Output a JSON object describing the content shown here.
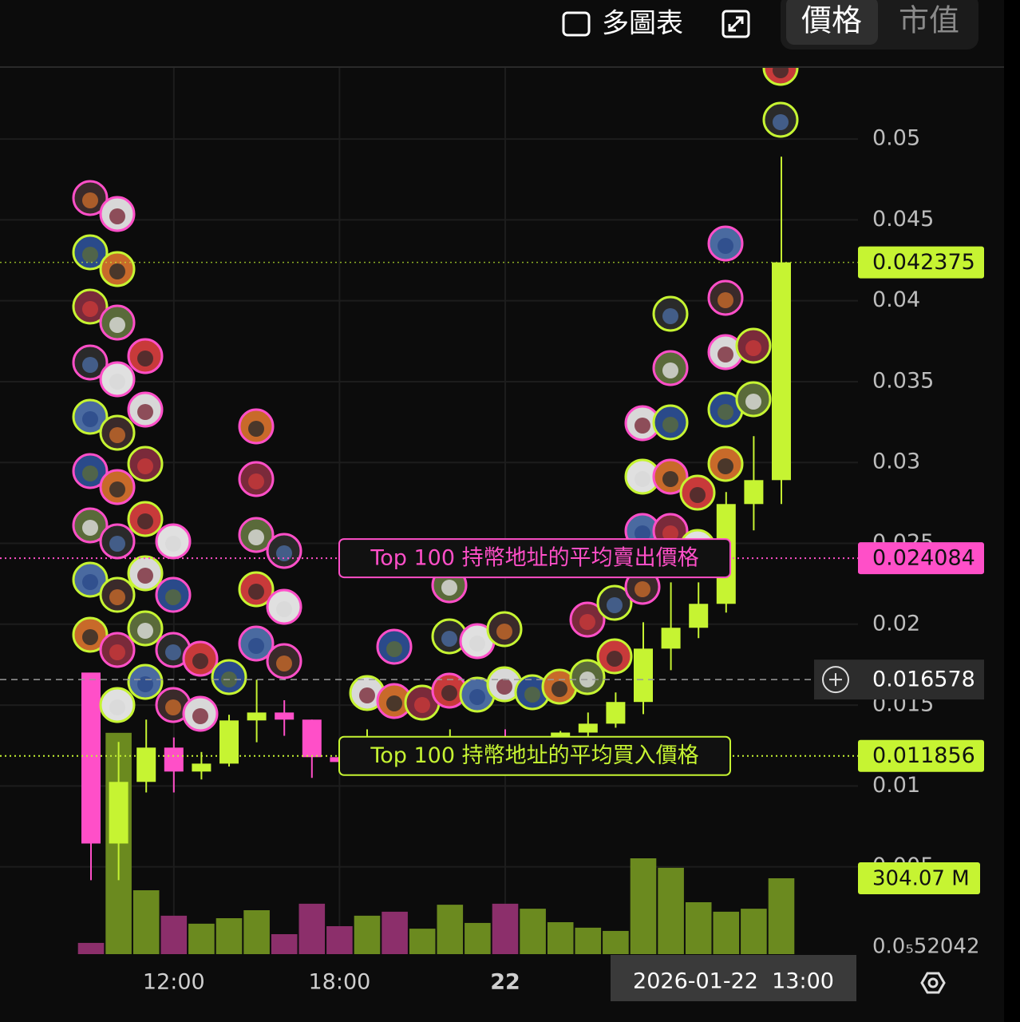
{
  "toolbar": {
    "multi_chart": "多圖表",
    "tabs": [
      "價格",
      "市值"
    ],
    "active_tab": 0
  },
  "chart_data": {
    "type": "candlestick",
    "categories": [
      null,
      null,
      null,
      "12:00",
      null,
      null,
      null,
      null,
      null,
      "18:00",
      null,
      null,
      null,
      null,
      null,
      "22",
      null,
      null,
      null,
      null,
      null,
      null,
      null,
      null,
      null,
      null
    ],
    "open": [
      0.01701,
      0.00644,
      0.01025,
      0.01237,
      0.01089,
      0.01138,
      0.01405,
      0.01454,
      0.0141,
      0.01178,
      0.01148,
      0.0118,
      0.0116,
      0.0119,
      0.0121,
      0.0122,
      0.012,
      0.0124,
      0.0133,
      0.01385,
      0.01519,
      0.01849,
      0.01978,
      0.02126,
      0.02743,
      0.02891
    ],
    "high": [
      0.017,
      0.01272,
      0.0141,
      0.013,
      0.0121,
      0.0144,
      0.01657,
      0.0153,
      0.0141,
      0.0118,
      0.0135,
      0.0128,
      0.0125,
      0.0135,
      0.0128,
      0.0135,
      0.0128,
      0.0134,
      0.01454,
      0.01578,
      0.02012,
      0.02259,
      0.02259,
      0.02817,
      0.03163,
      0.04891
    ],
    "low": [
      0.00417,
      0.00417,
      0.0096,
      0.0096,
      0.0104,
      0.0112,
      0.0127,
      0.0131,
      0.0105,
      0.0114,
      0.0112,
      0.0115,
      0.0114,
      0.0116,
      0.0117,
      0.0116,
      0.0118,
      0.012,
      0.0128,
      0.0136,
      0.01444,
      0.01716,
      0.01914,
      0.02072,
      0.0258,
      0.02743
    ],
    "close": [
      0.00644,
      0.01025,
      0.01237,
      0.01089,
      0.01138,
      0.01405,
      0.01454,
      0.0141,
      0.01178,
      0.01148,
      0.0118,
      0.0116,
      0.0119,
      0.0121,
      0.0122,
      0.012,
      0.0124,
      0.0133,
      0.01385,
      0.01519,
      0.01849,
      0.01978,
      0.02126,
      0.02743,
      0.02891,
      0.042375
    ],
    "up_color": "#c6f432",
    "down_color": "#ff4fc8",
    "ylim": [
      -0.0004,
      0.0544
    ],
    "yticks": [
      0.005,
      0.01,
      0.015,
      0.02,
      0.025,
      0.03,
      0.035,
      0.04,
      0.045,
      0.05
    ],
    "grid": true,
    "volume": {
      "values": [
        45,
        887,
        256,
        154,
        122,
        144,
        176,
        80,
        202,
        112,
        154,
        170,
        102,
        198,
        125,
        202,
        182,
        128,
        106,
        93,
        384,
        346,
        208,
        170,
        182,
        304.07
      ],
      "ylim": [
        0,
        960
      ],
      "up_color": "#6b8a1f",
      "down_color": "#8c2f6b",
      "last_value_label": "304.07 M"
    },
    "lines": [
      {
        "name": "Top 100 持幣地址的平均賣出價格",
        "value": 0.024084,
        "color": "#ff4fc8"
      },
      {
        "name": "Top 100 持幣地址的平均買入價格",
        "value": 0.011856,
        "color": "#c6f432"
      }
    ],
    "crosshair": {
      "value": 0.016578,
      "label": "2026-01-22  13:00"
    },
    "bottom_price_label": "0.0₅52042"
  }
}
